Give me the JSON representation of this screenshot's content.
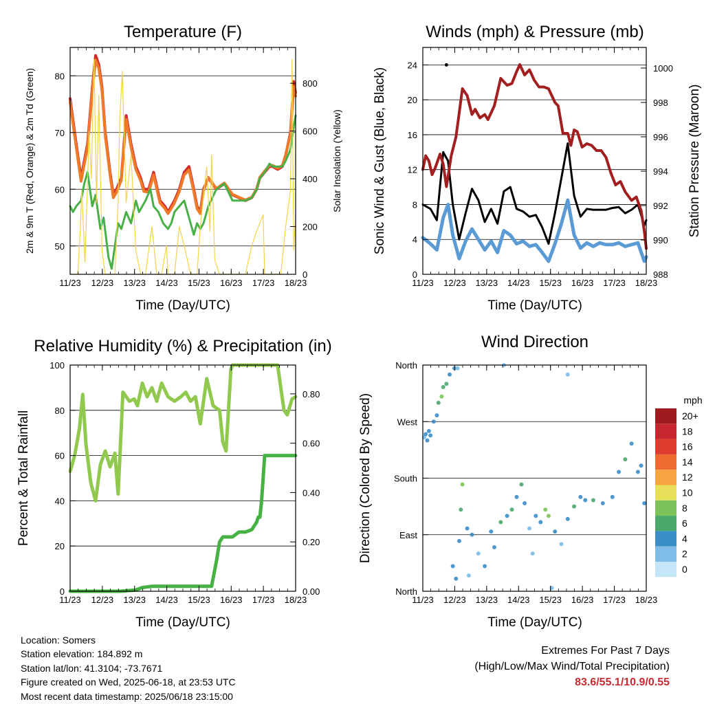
{
  "chart_data": [
    {
      "type": "line",
      "title": "Temperature (F)",
      "xlabel": "Time (Day/UTC)",
      "ylabel": "2m & 9m T (Red, Orange) & 2m Td (Green)",
      "y2label": "Solar Insolation (Yellow)",
      "x_ticks": [
        "11/23",
        "12/23",
        "13/23",
        "14/23",
        "15/23",
        "16/23",
        "17/23",
        "18/23"
      ],
      "xlim": [
        11.96,
        18.96
      ],
      "ylim": [
        45,
        85
      ],
      "y_ticks": [
        50,
        60,
        70,
        80
      ],
      "y2lim": [
        0,
        950
      ],
      "y2_ticks": [
        0,
        200,
        400,
        600,
        800
      ],
      "grid": "horizontal",
      "series": [
        {
          "color": "#d32a2a",
          "axis": "left",
          "x": [
            11.96,
            12.1,
            12.2,
            12.3,
            12.5,
            12.65,
            12.75,
            12.85,
            12.95,
            13.05,
            13.2,
            13.3,
            13.4,
            13.55,
            13.7,
            13.85,
            14.0,
            14.15,
            14.25,
            14.4,
            14.55,
            14.75,
            14.9,
            15.0,
            15.1,
            15.2,
            15.35,
            15.5,
            15.65,
            15.8,
            15.9,
            16.0,
            16.1,
            16.25,
            16.5,
            16.75,
            17.0,
            17.2,
            17.4,
            17.6,
            17.75,
            17.85,
            18.0,
            18.15,
            18.25,
            18.4,
            18.55,
            18.65,
            18.8,
            18.9,
            18.96
          ],
          "values": [
            76,
            70,
            66,
            62,
            68,
            78,
            83.6,
            82,
            78,
            70,
            63,
            59,
            60,
            62,
            73,
            68,
            64,
            62,
            60,
            60,
            63,
            58,
            57,
            56,
            57,
            58,
            60,
            63,
            64,
            60,
            57,
            56,
            60,
            62,
            60,
            61,
            59,
            58.5,
            58,
            58.5,
            60,
            62,
            63,
            64,
            64,
            63.5,
            64,
            66,
            70,
            79,
            77
          ]
        },
        {
          "color": "#ef7b2a",
          "axis": "left",
          "x": [
            11.96,
            12.1,
            12.2,
            12.3,
            12.5,
            12.65,
            12.75,
            12.85,
            12.95,
            13.05,
            13.2,
            13.3,
            13.4,
            13.55,
            13.7,
            13.85,
            14.0,
            14.15,
            14.25,
            14.4,
            14.55,
            14.75,
            14.9,
            15.0,
            15.1,
            15.2,
            15.35,
            15.5,
            15.65,
            15.8,
            15.9,
            16.0,
            16.1,
            16.25,
            16.5,
            16.75,
            17.0,
            17.2,
            17.4,
            17.6,
            17.75,
            17.85,
            18.0,
            18.15,
            18.25,
            18.4,
            18.55,
            18.65,
            18.8,
            18.9,
            18.96
          ],
          "values": [
            75.4,
            69.4,
            65.4,
            61.4,
            67.4,
            77.3,
            82.8,
            81.3,
            77.4,
            69.4,
            62.5,
            58.5,
            59.5,
            61.6,
            72.3,
            67.4,
            63.5,
            61.5,
            59.6,
            59.5,
            62.5,
            57.6,
            56.6,
            55.7,
            56.6,
            57.6,
            59.6,
            62.5,
            63.4,
            59.6,
            56.6,
            55.7,
            59.7,
            62.1,
            60.1,
            61.1,
            59.1,
            58.6,
            58.1,
            58.6,
            60.1,
            62.1,
            63.2,
            64.2,
            64.2,
            63.7,
            64.2,
            66.1,
            69.6,
            78.1,
            76.4
          ]
        },
        {
          "color": "#47b046",
          "axis": "left",
          "x": [
            11.96,
            12.05,
            12.15,
            12.3,
            12.4,
            12.5,
            12.65,
            12.75,
            12.9,
            13.0,
            13.15,
            13.25,
            13.35,
            13.45,
            13.55,
            13.7,
            13.85,
            14.0,
            14.1,
            14.3,
            14.45,
            14.55,
            14.7,
            14.85,
            15.0,
            15.1,
            15.2,
            15.35,
            15.5,
            15.65,
            15.8,
            15.9,
            16.0,
            16.1,
            16.25,
            16.5,
            16.75,
            17.0,
            17.2,
            17.4,
            17.6,
            17.75,
            17.85,
            18.0,
            18.15,
            18.25,
            18.4,
            18.55,
            18.65,
            18.8,
            18.9,
            18.96
          ],
          "values": [
            57,
            56,
            57,
            58,
            61,
            63,
            57,
            59,
            53,
            55,
            48,
            46,
            50,
            54,
            53,
            56,
            54,
            58,
            56,
            58,
            60,
            57,
            56,
            54,
            53,
            54,
            56,
            57,
            58,
            55,
            52,
            54,
            53,
            54,
            57,
            60,
            61,
            58,
            58,
            58,
            58.5,
            60,
            62,
            63,
            64.5,
            64,
            64,
            64,
            65,
            67,
            71,
            73
          ]
        },
        {
          "color": "#f3d448",
          "axis": "right",
          "x": [
            11.96,
            12.2,
            12.28,
            12.32,
            12.42,
            12.55,
            12.62,
            12.7,
            12.78,
            12.85,
            12.95,
            13.05,
            13.2,
            13.35,
            13.45,
            13.5,
            13.58,
            13.7,
            13.85,
            14.0,
            14.15,
            14.3,
            14.5,
            14.65,
            14.8,
            14.95,
            15.0,
            15.2,
            15.35,
            15.5,
            15.7,
            15.9,
            16.0,
            16.2,
            16.3,
            16.35,
            16.45,
            16.6,
            16.75,
            16.9,
            17.0,
            17.2,
            17.4,
            17.6,
            17.75,
            17.95,
            18.0,
            18.2,
            18.35,
            18.5,
            18.65,
            18.8,
            18.85,
            18.9,
            18.96
          ],
          "values": [
            0,
            0,
            200,
            350,
            50,
            600,
            400,
            900,
            300,
            750,
            100,
            0,
            0,
            0,
            300,
            650,
            850,
            300,
            500,
            100,
            0,
            0,
            200,
            0,
            0,
            120,
            0,
            0,
            200,
            120,
            0,
            0,
            200,
            450,
            180,
            500,
            60,
            0,
            0,
            0,
            0,
            0,
            0,
            120,
            180,
            250,
            0,
            0,
            0,
            0,
            200,
            350,
            900,
            100,
            250
          ]
        }
      ]
    },
    {
      "type": "line",
      "title": "Winds (mph) & Pressure (mb)",
      "xlabel": "Time (Day/UTC)",
      "ylabel": "Sonic Wind & Gust (Blue, Black)",
      "y2label": "Station Pressure (Maroon)",
      "x_ticks": [
        "11/23",
        "12/23",
        "13/23",
        "14/23",
        "15/23",
        "16/23",
        "17/23",
        "18/23"
      ],
      "xlim": [
        11.96,
        18.96
      ],
      "ylim": [
        0,
        26
      ],
      "y_ticks": [
        0,
        4,
        8,
        12,
        16,
        20,
        24
      ],
      "y2lim": [
        988,
        1001.2
      ],
      "y2_ticks": [
        988,
        990,
        992,
        994,
        996,
        998,
        1000
      ],
      "grid": "horizontal",
      "series": [
        {
          "color": "#5b9bd5",
          "axis": "left",
          "x": [
            11.96,
            12.2,
            12.4,
            12.6,
            12.75,
            12.9,
            13.1,
            13.3,
            13.5,
            13.7,
            13.9,
            14.1,
            14.3,
            14.5,
            14.7,
            14.9,
            15.1,
            15.3,
            15.5,
            15.7,
            15.9,
            16.1,
            16.3,
            16.5,
            16.7,
            16.9,
            17.1,
            17.3,
            17.5,
            17.7,
            17.9,
            18.1,
            18.3,
            18.5,
            18.7,
            18.9,
            18.96
          ],
          "values": [
            4.2,
            3.5,
            2.8,
            6.5,
            8,
            4.5,
            1.8,
            3.8,
            5.2,
            4,
            2.8,
            3.8,
            2.5,
            5,
            4.5,
            3.5,
            3.8,
            3.2,
            3.4,
            2.5,
            1.5,
            3.5,
            5.8,
            8.5,
            4.5,
            3,
            3.6,
            3.2,
            3.6,
            3.4,
            3.4,
            3.6,
            3.2,
            3.4,
            3.6,
            1.5,
            2
          ]
        },
        {
          "color": "#000000",
          "axis": "left",
          "x": [
            11.96,
            12.2,
            12.4,
            12.6,
            12.75,
            12.9,
            13.1,
            13.3,
            13.5,
            13.7,
            13.9,
            14.1,
            14.3,
            14.5,
            14.7,
            14.9,
            15.1,
            15.3,
            15.5,
            15.7,
            15.9,
            16.1,
            16.3,
            16.5,
            16.7,
            16.9,
            17.1,
            17.3,
            17.5,
            17.7,
            17.9,
            18.1,
            18.3,
            18.5,
            18.7,
            18.9,
            18.96
          ],
          "values": [
            8,
            7.5,
            6.2,
            14,
            13,
            8,
            4,
            7,
            9.8,
            8.5,
            6,
            7.5,
            5.8,
            9.5,
            10,
            7.5,
            7.2,
            6.6,
            6.8,
            5.4,
            3.5,
            7,
            11,
            15,
            9,
            6.6,
            7.5,
            7.4,
            7.4,
            7.4,
            7.6,
            7.7,
            7,
            7.4,
            8,
            5.6,
            6.2
          ]
        },
        {
          "color": "#a31f1f",
          "axis": "right",
          "x": [
            11.96,
            12.05,
            12.15,
            12.25,
            12.35,
            12.5,
            12.6,
            12.7,
            12.85,
            13.0,
            13.2,
            13.35,
            13.5,
            13.6,
            13.75,
            13.9,
            14.0,
            14.2,
            14.4,
            14.6,
            14.75,
            14.9,
            15.0,
            15.15,
            15.3,
            15.45,
            15.6,
            15.75,
            15.9,
            16.1,
            16.2,
            16.35,
            16.5,
            16.6,
            16.7,
            16.8,
            16.95,
            17.1,
            17.25,
            17.4,
            17.55,
            17.7,
            17.85,
            18.0,
            18.15,
            18.3,
            18.5,
            18.65,
            18.8,
            18.9,
            18.96
          ],
          "values": [
            994.1,
            994.9,
            994.6,
            993.8,
            994.2,
            995.0,
            994.4,
            993.1,
            994.9,
            996.0,
            998.8,
            998.4,
            997.3,
            997.6,
            997.1,
            997.3,
            997.0,
            997.8,
            999.4,
            999.0,
            999.1,
            999.8,
            1000.2,
            999.6,
            999.9,
            999.3,
            998.9,
            998.9,
            998.8,
            998.0,
            997.8,
            996.2,
            996.2,
            995.5,
            996.4,
            996.3,
            995.4,
            995.6,
            995.5,
            995.2,
            995.2,
            994.8,
            993.9,
            993.2,
            993.4,
            992.8,
            992.3,
            992.5,
            991.7,
            990.5,
            989.5
          ]
        }
      ],
      "annotations": [
        {
          "x": 12.7,
          "value": 24,
          "axis": "left",
          "color": "#000000"
        }
      ]
    },
    {
      "type": "line",
      "title": "Relative Humidity (%) & Precipitation (in)",
      "xlabel": "Time (Day/UTC)",
      "ylabel": "Percent & Total Rainfall",
      "x_ticks": [
        "11/23",
        "12/23",
        "13/23",
        "14/23",
        "15/23",
        "16/23",
        "17/23",
        "18/23"
      ],
      "xlim": [
        11.96,
        18.96
      ],
      "ylim": [
        0,
        100
      ],
      "y_ticks": [
        0,
        20,
        40,
        60,
        80,
        100
      ],
      "y2lim": [
        0,
        0.9167
      ],
      "y2_ticks": [
        0.0,
        0.2,
        0.4,
        0.6,
        0.8
      ],
      "y2_tick_labels": [
        "0.00",
        "0.20",
        "0.40",
        "0.60",
        "0.80"
      ],
      "grid": "horizontal",
      "series": [
        {
          "color": "#91c94f",
          "axis": "left",
          "x": [
            11.96,
            12.1,
            12.25,
            12.35,
            12.45,
            12.6,
            12.75,
            12.9,
            13.05,
            13.2,
            13.35,
            13.45,
            13.6,
            13.8,
            13.95,
            14.05,
            14.2,
            14.35,
            14.5,
            14.65,
            14.8,
            15.0,
            15.2,
            15.4,
            15.55,
            15.7,
            15.85,
            16.0,
            16.2,
            16.4,
            16.6,
            16.7,
            16.8,
            16.95,
            17.0,
            17.1,
            17.5,
            18.0,
            18.4,
            18.5,
            18.6,
            18.7,
            18.85,
            18.96
          ],
          "values": [
            53,
            60,
            72,
            87,
            65,
            48,
            40,
            56,
            62,
            55,
            61,
            43,
            88,
            84,
            85,
            82,
            92,
            86,
            90,
            84,
            92,
            86,
            84,
            86,
            88,
            84,
            86,
            74,
            94,
            82,
            80,
            66,
            62,
            98,
            100,
            100,
            100,
            100,
            100,
            90,
            80,
            78,
            85,
            86
          ]
        },
        {
          "color": "#46b243",
          "axis": "right",
          "x": [
            11.96,
            12.5,
            13.0,
            13.5,
            14.0,
            14.2,
            14.5,
            15.0,
            15.5,
            16.0,
            16.2,
            16.35,
            16.5,
            16.6,
            16.7,
            16.85,
            17.0,
            17.2,
            17.4,
            17.6,
            17.75,
            17.8,
            17.85,
            17.9,
            18.0,
            18.2,
            18.5,
            18.96
          ],
          "values": [
            0,
            0,
            0,
            0,
            0.005,
            0.015,
            0.02,
            0.02,
            0.02,
            0.02,
            0.02,
            0.02,
            0.12,
            0.2,
            0.22,
            0.22,
            0.22,
            0.24,
            0.24,
            0.25,
            0.28,
            0.3,
            0.3,
            0.36,
            0.55,
            0.55,
            0.55,
            0.55
          ]
        }
      ]
    },
    {
      "type": "scatter",
      "title": "Wind Direction",
      "xlabel": "Time (Day/UTC)",
      "ylabel": "Direction (Colored By Speed)",
      "x_ticks": [
        "11/23",
        "12/23",
        "13/23",
        "14/23",
        "15/23",
        "16/23",
        "17/23",
        "18/23"
      ],
      "xlim": [
        11.96,
        18.96
      ],
      "ylim": [
        0,
        360
      ],
      "y_ticks": [
        0,
        90,
        180,
        270,
        360
      ],
      "y_tick_labels": [
        "North",
        "East",
        "South",
        "West",
        "North"
      ],
      "grid": "horizontal",
      "colorbar": {
        "title": "mph",
        "labels": [
          "20+",
          "18",
          "16",
          "14",
          "12",
          "10",
          "8",
          "6",
          "4",
          "2",
          "0"
        ],
        "colors": [
          "#9e1b1e",
          "#c6262e",
          "#de3b2e",
          "#ef6b2f",
          "#f7a543",
          "#e8e05a",
          "#7cc359",
          "#4aa86c",
          "#3a8ec8",
          "#7dbde8",
          "#c4e6f8"
        ]
      }
    }
  ],
  "footer": {
    "location": "Location: Somers",
    "elevation": "Station elevation: 184.892 m",
    "latlon": "Station lat/lon: 41.3104; -73.7671",
    "created": "Figure created on Wed, 2025-06-18, at 23:53 UTC",
    "recent": "Most recent data timestamp: 2025/06/18 23:15:00",
    "extremes_title": "Extremes For Past 7 Days",
    "extremes_subtitle": "(High/Low/Max Wind/Total Precipitation)",
    "extremes_values": "83.6/55.1/10.9/0.55"
  }
}
